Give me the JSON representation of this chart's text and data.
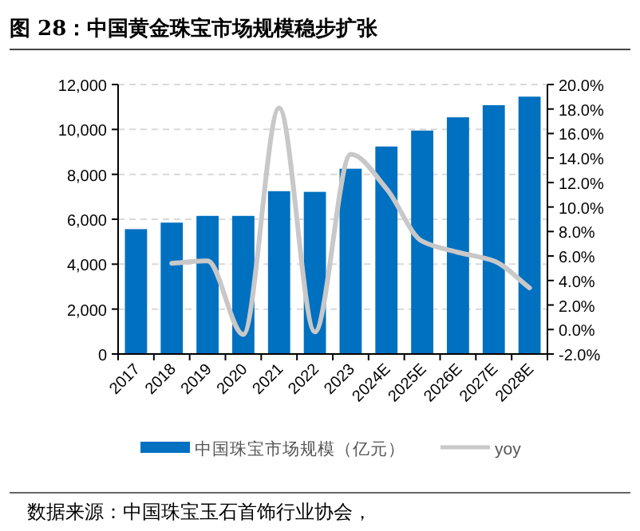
{
  "chart_data": {
    "type": "bar",
    "title": "图 28：中国黄金珠宝市场规模稳步扩张",
    "categories": [
      "2017",
      "2018",
      "2019",
      "2020",
      "2021",
      "2022",
      "2023",
      "2024E",
      "2025E",
      "2026E",
      "2027E",
      "2028E"
    ],
    "series": [
      {
        "name": "中国珠宝市场规模（亿元）",
        "color": "#0070c0",
        "values": [
          5560,
          5850,
          6150,
          6150,
          7250,
          7220,
          8250,
          9240,
          9950,
          10540,
          11080,
          11460
        ]
      },
      {
        "name": "yoy",
        "type": "line",
        "axis": "y2",
        "color": "#c8c8c8",
        "values": [
          null,
          5.4,
          5.6,
          -0.4,
          18.1,
          -0.2,
          14.3,
          11.5,
          7.2,
          6.3,
          5.6,
          3.4
        ]
      }
    ],
    "ylim": [
      0,
      12000
    ],
    "yticks": [
      {
        "value": 0,
        "label": "0"
      },
      {
        "value": 2000,
        "label": "2,000"
      },
      {
        "value": 4000,
        "label": "4,000"
      },
      {
        "value": 6000,
        "label": "6,000"
      },
      {
        "value": 8000,
        "label": "8,000"
      },
      {
        "value": 10000,
        "label": "10,000"
      },
      {
        "value": 12000,
        "label": "12,000"
      }
    ],
    "y2lim": [
      -2,
      20
    ],
    "y2ticks": [
      {
        "value": -2,
        "label": "-2.0%"
      },
      {
        "value": 0,
        "label": "0.0%"
      },
      {
        "value": 2,
        "label": "2.0%"
      },
      {
        "value": 4,
        "label": "4.0%"
      },
      {
        "value": 6,
        "label": "6.0%"
      },
      {
        "value": 8,
        "label": "8.0%"
      },
      {
        "value": 10,
        "label": "10.0%"
      },
      {
        "value": 12,
        "label": "12.0%"
      },
      {
        "value": 14,
        "label": "14.0%"
      },
      {
        "value": 16,
        "label": "16.0%"
      },
      {
        "value": 18,
        "label": "18.0%"
      },
      {
        "value": 20,
        "label": "20.0%"
      }
    ],
    "grid": "y",
    "legend": "bottom",
    "annotations": [
      "数据来源：中国珠宝玉石首饰行业协会，"
    ]
  }
}
